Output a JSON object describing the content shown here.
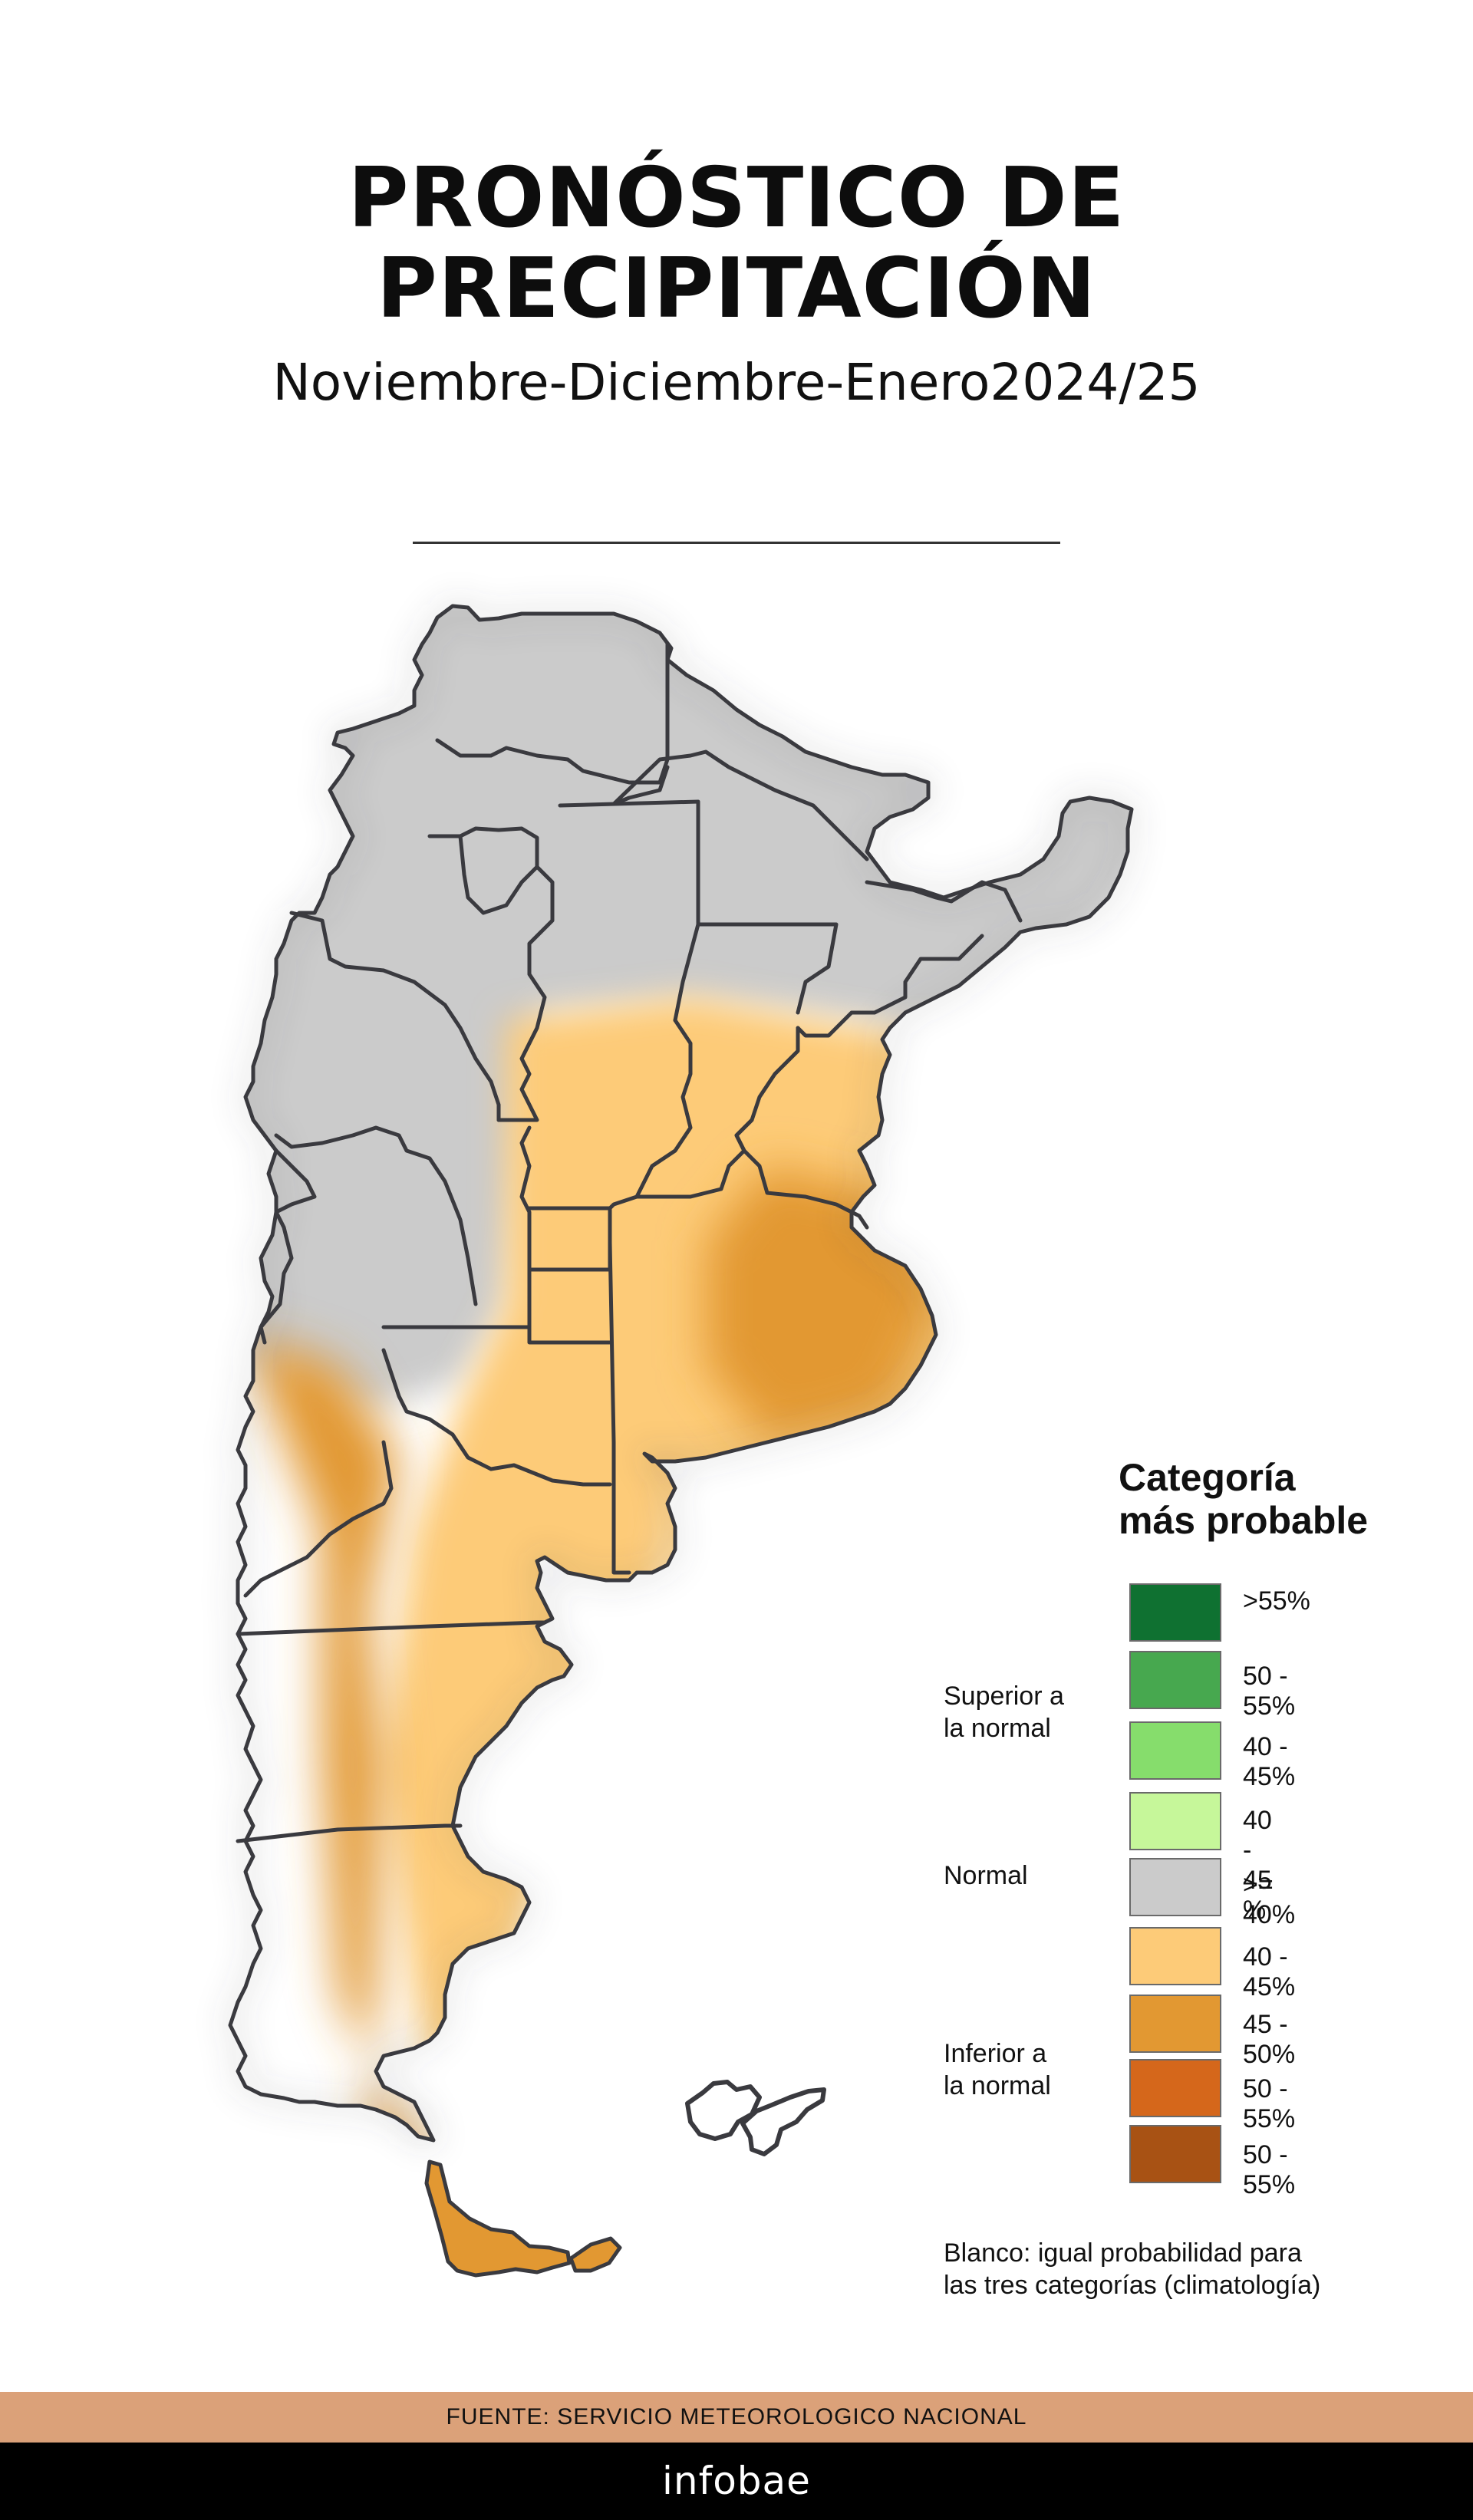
{
  "header": {
    "title_line1": "PRONÓSTICO DE",
    "title_line2": "PRECIPITACIÓN",
    "subtitle": "Noviembre-Diciembre-Enero2024/25"
  },
  "legend": {
    "title_line1": "Categoría",
    "title_line2": "más probable",
    "groups": {
      "superior_line1": "Superior a",
      "superior_line2": "la normal",
      "normal": "Normal",
      "inferior_line1": "Inferior a",
      "inferior_line2": "la normal"
    },
    "items": [
      {
        "label": ">55%",
        "color": "#0f7131"
      },
      {
        "label": "50 - 55%",
        "color": "#47a84f"
      },
      {
        "label": "40 - 45%",
        "color": "#86dd6c"
      },
      {
        "label": "40 - 45 %",
        "color": "#c6f79a"
      },
      {
        "label": ">= 40%",
        "color": "#cbcbcb"
      },
      {
        "label": "40 - 45%",
        "color": "#fdcb78"
      },
      {
        "label": "45 - 50%",
        "color": "#e29832"
      },
      {
        "label": "50 - 55%",
        "color": "#d5671b"
      },
      {
        "label": "50 - 55%",
        "color": "#a85214"
      }
    ],
    "note_line1": "Blanco: igual probabilidad para",
    "note_line2": "las tres categorías (climatología)"
  },
  "map_colors": {
    "normal": "#cbcbcb",
    "below_40_45": "#fdcb78",
    "below_45_50": "#e29832",
    "outline": "#3a3a3f"
  },
  "footer": {
    "source": "FUENTE: SERVICIO METEOROLOGICO NACIONAL",
    "brand": "infobae"
  }
}
